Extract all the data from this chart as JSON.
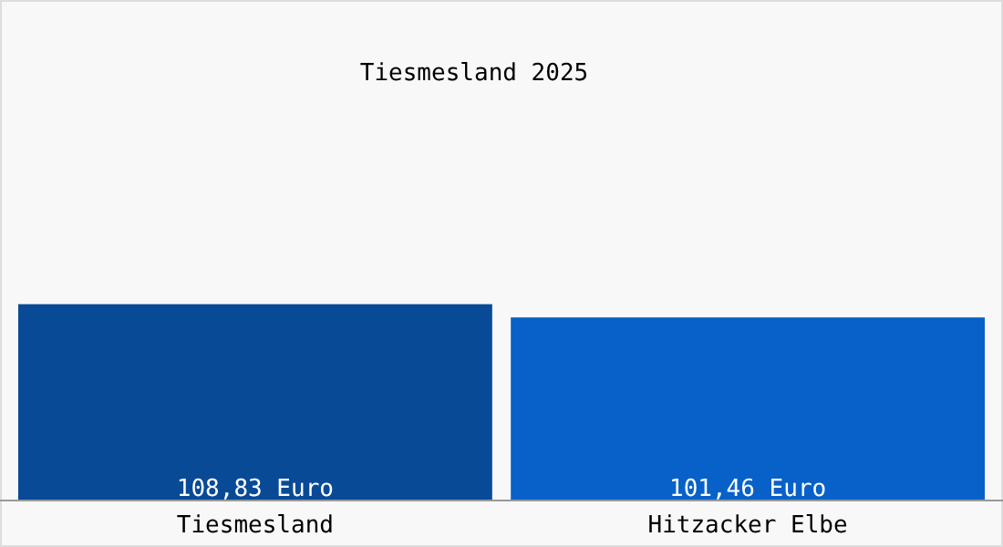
{
  "chart_data": {
    "type": "bar",
    "title": "Tiesmesland 2025",
    "categories": [
      "Tiesmesland",
      "Hitzacker Elbe"
    ],
    "values": [
      108.83,
      101.46
    ],
    "colors": [
      "#084a96",
      "#0761c8"
    ],
    "value_labels": [
      "108,83 Euro",
      "101,46 Euro"
    ]
  }
}
